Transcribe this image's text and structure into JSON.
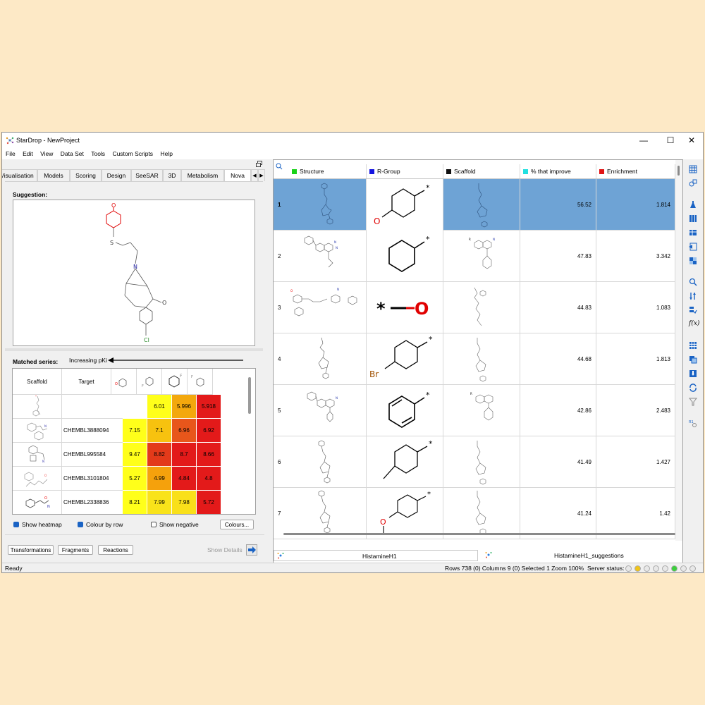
{
  "window": {
    "title": "StarDrop - NewProject",
    "minimize": "—",
    "maximize": "☐",
    "close": "✕"
  },
  "menu": [
    "File",
    "Edit",
    "View",
    "Data Set",
    "Tools",
    "Custom Scripts",
    "Help"
  ],
  "tabs": [
    "Visualisation",
    "Models",
    "Scoring",
    "Design",
    "SeeSAR",
    "3D",
    "Metabolism",
    "Nova"
  ],
  "tabs_active": "Nova",
  "suggestion_label": "Suggestion:",
  "matched_series": {
    "label": "Matched series:",
    "arrow_label": "Increasing pKi",
    "col_scaffold": "Scaffold",
    "col_target": "Target",
    "rows": [
      {
        "target": "",
        "values": [
          "",
          "6.01",
          "5.996",
          "5.918"
        ]
      },
      {
        "target": "CHEMBL3888094",
        "values": [
          "7.15",
          "7.1",
          "6.96",
          "6.92"
        ]
      },
      {
        "target": "CHEMBL995584",
        "values": [
          "9.47",
          "8.82",
          "8.7",
          "8.66"
        ]
      },
      {
        "target": "CHEMBL3101804",
        "values": [
          "5.27",
          "4.99",
          "4.84",
          "4.8"
        ]
      },
      {
        "target": "CHEMBL2338836",
        "values": [
          "8.21",
          "7.99",
          "7.98",
          "5.72"
        ]
      }
    ],
    "heat_colors": [
      [
        "#ffffff",
        "#ffff1a",
        "#f3a80d",
        "#e31a1a"
      ],
      [
        "#ffff1a",
        "#f7c20f",
        "#e8561b",
        "#e31a1a"
      ],
      [
        "#ffff1a",
        "#e33a1a",
        "#e31a1a",
        "#e31a1a"
      ],
      [
        "#ffff1a",
        "#f5a10c",
        "#e31a1a",
        "#e31a1a"
      ],
      [
        "#ffff1a",
        "#f9e31a",
        "#f9e01a",
        "#e31a1a"
      ]
    ]
  },
  "options": {
    "show_heatmap": "Show heatmap",
    "colour_by_row": "Colour by row",
    "show_negative": "Show negative",
    "colours_button": "Colours..."
  },
  "bottom_buttons": {
    "transformations": "Transformations",
    "fragments": "Fragments",
    "reactions": "Reactions",
    "show_details": "Show Details"
  },
  "grid": {
    "columns": [
      {
        "name": "Structure",
        "color": "#19d219"
      },
      {
        "name": "R-Group",
        "color": "#1414e0"
      },
      {
        "name": "Scaffold",
        "color": "#111111"
      },
      {
        "name": "% that improve",
        "color": "#22e0e0"
      },
      {
        "name": "Enrichment",
        "color": "#e01414"
      }
    ],
    "rows": [
      {
        "n": "1",
        "improve": "56.52",
        "enrichment": "1.814",
        "selected": true,
        "rgroup": "hydroxyphenyl"
      },
      {
        "n": "2",
        "improve": "47.83",
        "enrichment": "3.342",
        "selected": false,
        "rgroup": "cyclohexyl"
      },
      {
        "n": "3",
        "improve": "44.83",
        "enrichment": "1.083",
        "selected": false,
        "rgroup": "hydroxyl"
      },
      {
        "n": "4",
        "improve": "44.68",
        "enrichment": "1.813",
        "selected": false,
        "rgroup": "bromophenyl"
      },
      {
        "n": "5",
        "improve": "42.86",
        "enrichment": "2.483",
        "selected": false,
        "rgroup": "phenyl"
      },
      {
        "n": "6",
        "improve": "41.49",
        "enrichment": "1.427",
        "selected": false,
        "rgroup": "tolyl"
      },
      {
        "n": "7",
        "improve": "41.24",
        "enrichment": "1.42",
        "selected": false,
        "rgroup": "methoxyphenyl"
      }
    ],
    "rgroup_atom_labels": {
      "O": "O",
      "Br": "Br",
      "star": "*"
    }
  },
  "bottom_tabs": [
    "HistamineH1",
    "HistamineH1_suggestions"
  ],
  "status": {
    "left": "Ready",
    "info": "Rows 738 (0) Columns 9 (0) Selected 1 Zoom 100%",
    "server_label": "Server status:",
    "dot_colors": [
      "#e8e8e8",
      "#f0c419",
      "#e8e8e8",
      "#e8e8e8",
      "#e8e8e8",
      "#3ccf3c",
      "#e8e8e8",
      "#e8e8e8"
    ]
  }
}
